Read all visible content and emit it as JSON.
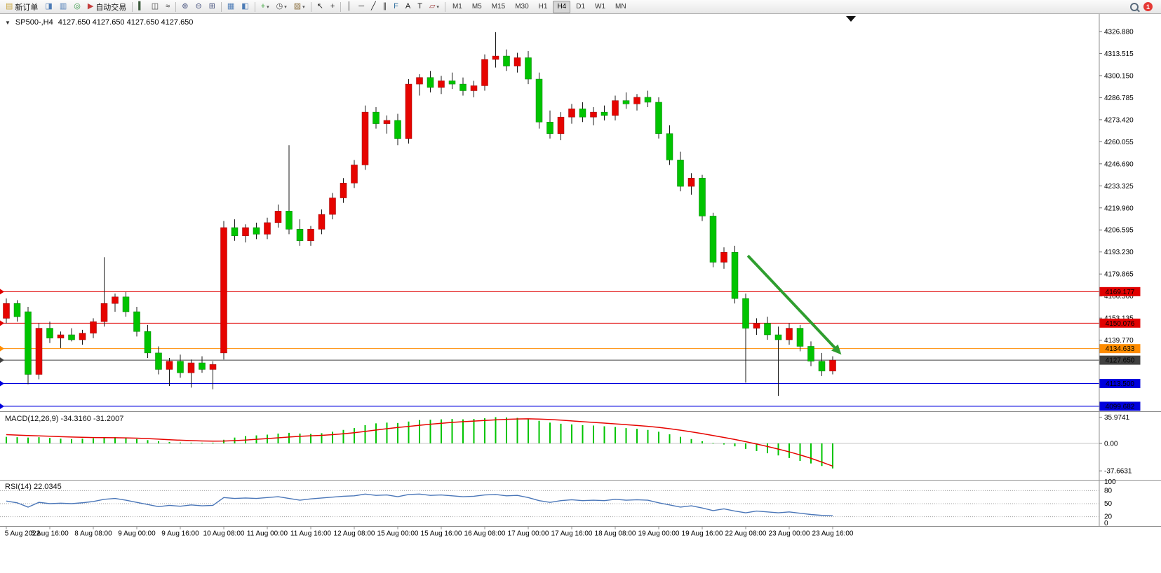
{
  "toolbar": {
    "items": [
      {
        "name": "new-order-button",
        "label": "新订单",
        "glyph": "▤",
        "color": "#c8a43c"
      },
      {
        "name": "chart-profiles-icon",
        "glyph": "◨",
        "color": "#4a7ab5"
      },
      {
        "name": "data-window-icon",
        "glyph": "▥",
        "color": "#4a7ab5"
      },
      {
        "name": "strategy-tester-icon",
        "glyph": "◎",
        "color": "#3f9d4e"
      },
      {
        "name": "autotrading-button",
        "label": "自动交易",
        "glyph": "▶",
        "color": "#c43c3c"
      },
      {
        "sep": true
      },
      {
        "name": "bar-chart-icon",
        "glyph": "▍",
        "color": "#3c5a3c"
      },
      {
        "name": "candlestick-chart-icon",
        "glyph": "◫",
        "color": "#444444"
      },
      {
        "name": "line-chart-icon",
        "glyph": "≈",
        "color": "#444444"
      },
      {
        "sep": true
      },
      {
        "name": "zoom-in-icon",
        "glyph": "⊕",
        "color": "#44507c"
      },
      {
        "name": "zoom-out-icon",
        "glyph": "⊖",
        "color": "#44507c"
      },
      {
        "name": "tile-windows-icon",
        "glyph": "⊞",
        "color": "#44507c"
      },
      {
        "sep": true
      },
      {
        "name": "auto-arrange-icon",
        "glyph": "▦",
        "color": "#4a7ab5"
      },
      {
        "name": "cascade-windows-icon",
        "glyph": "◧",
        "color": "#4a7ab5"
      },
      {
        "sep": true
      },
      {
        "name": "indicators-add-icon",
        "glyph": "+",
        "color": "#2e9e2e",
        "caret": true
      },
      {
        "name": "periods-icon",
        "glyph": "◷",
        "color": "#444444",
        "caret": true
      },
      {
        "name": "templates-icon",
        "glyph": "▨",
        "color": "#8a6d3b",
        "caret": true
      },
      {
        "sep": true
      },
      {
        "name": "cursor-icon",
        "glyph": "↖",
        "color": "#222222"
      },
      {
        "name": "crosshair-icon",
        "glyph": "+",
        "color": "#222222"
      },
      {
        "sep": true
      },
      {
        "name": "vertical-line-icon",
        "glyph": "│",
        "color": "#222222"
      },
      {
        "name": "horizontal-line-icon",
        "glyph": "─",
        "color": "#222222"
      },
      {
        "name": "trendline-icon",
        "glyph": "╱",
        "color": "#222222"
      },
      {
        "name": "equidistant-channel-icon",
        "glyph": "∥",
        "color": "#222222"
      },
      {
        "name": "fibonacci-icon",
        "glyph": "F",
        "color": "#2e6e9e"
      },
      {
        "name": "text-icon",
        "glyph": "A",
        "color": "#222222"
      },
      {
        "name": "text-label-icon",
        "glyph": "T",
        "color": "#222222"
      },
      {
        "name": "graphic-objects-icon",
        "glyph": "▱",
        "color": "#a04040",
        "caret": true
      },
      {
        "sep": true
      }
    ],
    "timeframes": [
      "M1",
      "M5",
      "M15",
      "M30",
      "H1",
      "H4",
      "D1",
      "W1",
      "MN"
    ],
    "active_timeframe": "H4",
    "notification_count": "1"
  },
  "chart": {
    "title_symbol": "SP500-,H4",
    "title_ohlc": "4127.650 4127.650 4127.650 4127.650"
  },
  "indicators": {
    "macd_label": "MACD(12,26,9) -34.3160 -31.2007",
    "rsi_label": "RSI(14) 22.0345"
  },
  "chart_data": {
    "type": "candlestick",
    "title": "SP500-,H4",
    "timeframe": "H4",
    "colors": {
      "bull": "#e60400",
      "bear": "#00c400",
      "wick": "#1a1a1a",
      "macd_hist": "#00c400",
      "macd_signal": "#e60400",
      "rsi_line": "#4a76b8",
      "arrow": "#2f9e2f"
    },
    "price_axis": {
      "min": 4099.675,
      "max": 4326.88,
      "ticks": [
        "4326.880",
        "4313.515",
        "4300.150",
        "4286.785",
        "4273.420",
        "4260.055",
        "4246.690",
        "4233.325",
        "4219.960",
        "4206.595",
        "4193.230",
        "4179.865",
        "4166.500",
        "4153.135",
        "4139.770",
        "4126.405",
        "4113.040",
        "4099.675"
      ]
    },
    "x_labels": [
      "5 Aug 2022",
      "5 Aug 16:00",
      "8 Aug 08:00",
      "9 Aug 00:00",
      "9 Aug 16:00",
      "10 Aug 08:00",
      "11 Aug 00:00",
      "11 Aug 16:00",
      "12 Aug 08:00",
      "15 Aug 00:00",
      "15 Aug 16:00",
      "16 Aug 08:00",
      "17 Aug 00:00",
      "17 Aug 16:00",
      "18 Aug 08:00",
      "19 Aug 00:00",
      "19 Aug 16:00",
      "22 Aug 08:00",
      "23 Aug 00:00",
      "23 Aug 16:00"
    ],
    "candles_ohlc": [
      [
        4153,
        4165,
        4150,
        4162
      ],
      [
        4162,
        4164,
        4151,
        4154
      ],
      [
        4157,
        4160,
        4113,
        4119
      ],
      [
        4119,
        4150,
        4116,
        4147
      ],
      [
        4147,
        4151,
        4138,
        4141
      ],
      [
        4141,
        4145,
        4135,
        4143
      ],
      [
        4143,
        4147,
        4139,
        4140
      ],
      [
        4140,
        4146,
        4137,
        4144
      ],
      [
        4144,
        4153,
        4141,
        4151
      ],
      [
        4151,
        4190,
        4148,
        4162
      ],
      [
        4162,
        4168,
        4157,
        4166
      ],
      [
        4166,
        4169,
        4154,
        4157
      ],
      [
        4157,
        4160,
        4142,
        4145
      ],
      [
        4145,
        4149,
        4129,
        4132
      ],
      [
        4132,
        4136,
        4119,
        4122
      ],
      [
        4122,
        4129,
        4112,
        4127
      ],
      [
        4127,
        4131,
        4117,
        4120
      ],
      [
        4120,
        4128,
        4111,
        4126
      ],
      [
        4126,
        4130,
        4120,
        4122
      ],
      [
        4122,
        4127,
        4110,
        4125
      ],
      [
        4132,
        4212,
        4128,
        4208
      ],
      [
        4208,
        4213,
        4200,
        4203
      ],
      [
        4203,
        4210,
        4199,
        4208
      ],
      [
        4208,
        4211,
        4201,
        4204
      ],
      [
        4204,
        4214,
        4201,
        4211
      ],
      [
        4211,
        4222,
        4208,
        4218
      ],
      [
        4218,
        4258,
        4204,
        4207
      ],
      [
        4207,
        4213,
        4197,
        4200
      ],
      [
        4200,
        4209,
        4197,
        4207
      ],
      [
        4207,
        4219,
        4204,
        4216
      ],
      [
        4216,
        4229,
        4213,
        4226
      ],
      [
        4226,
        4238,
        4223,
        4235
      ],
      [
        4235,
        4249,
        4232,
        4246
      ],
      [
        4246,
        4282,
        4243,
        4278
      ],
      [
        4278,
        4281,
        4268,
        4271
      ],
      [
        4271,
        4276,
        4265,
        4273
      ],
      [
        4273,
        4277,
        4258,
        4262
      ],
      [
        4262,
        4298,
        4259,
        4295
      ],
      [
        4295,
        4301,
        4288,
        4299
      ],
      [
        4299,
        4303,
        4290,
        4293
      ],
      [
        4293,
        4300,
        4289,
        4297
      ],
      [
        4297,
        4302,
        4292,
        4295
      ],
      [
        4295,
        4299,
        4288,
        4291
      ],
      [
        4291,
        4297,
        4287,
        4294
      ],
      [
        4294,
        4313,
        4291,
        4310
      ],
      [
        4310,
        4326.5,
        4305,
        4312
      ],
      [
        4312,
        4316,
        4303,
        4306
      ],
      [
        4306,
        4314,
        4302,
        4311
      ],
      [
        4311,
        4315,
        4295,
        4298
      ],
      [
        4298,
        4302,
        4268,
        4272
      ],
      [
        4272,
        4279,
        4262,
        4265
      ],
      [
        4265,
        4278,
        4261,
        4275
      ],
      [
        4275,
        4283,
        4271,
        4280
      ],
      [
        4280,
        4284,
        4272,
        4275
      ],
      [
        4275,
        4281,
        4270,
        4278
      ],
      [
        4278,
        4282,
        4273,
        4276
      ],
      [
        4276,
        4288,
        4273,
        4285
      ],
      [
        4285,
        4290,
        4280,
        4283
      ],
      [
        4283,
        4289,
        4279,
        4287
      ],
      [
        4287,
        4291,
        4281,
        4284
      ],
      [
        4284,
        4287,
        4262,
        4265
      ],
      [
        4265,
        4270,
        4246,
        4249
      ],
      [
        4249,
        4254,
        4230,
        4233
      ],
      [
        4233,
        4241,
        4228,
        4238
      ],
      [
        4238,
        4240,
        4212,
        4215
      ],
      [
        4215,
        4217,
        4184,
        4187
      ],
      [
        4187,
        4196,
        4183,
        4193
      ],
      [
        4193,
        4197,
        4162,
        4165
      ],
      [
        4165,
        4168,
        4114,
        4147
      ],
      [
        4147,
        4153,
        4143,
        4150
      ],
      [
        4150,
        4154,
        4140,
        4143
      ],
      [
        4143,
        4148,
        4106,
        4140
      ],
      [
        4140,
        4150,
        4137,
        4147
      ],
      [
        4147,
        4149,
        4133,
        4136
      ],
      [
        4136,
        4139,
        4124,
        4127
      ],
      [
        4127,
        4132,
        4118,
        4121
      ],
      [
        4121,
        4130,
        4119,
        4127.65
      ]
    ],
    "hlines": [
      {
        "price": 4169.177,
        "label": "4169.177",
        "color": "#e00000"
      },
      {
        "price": 4150.076,
        "label": "4150.076",
        "color": "#e00000"
      },
      {
        "price": 4134.633,
        "label": "4134.633",
        "color": "#ff8c00"
      },
      {
        "price": 4127.65,
        "label": "4127.650",
        "color": "#404040",
        "current": true
      },
      {
        "price": 4113.5,
        "label": "4113.500",
        "color": "#0000dd"
      },
      {
        "price": 4099.682,
        "label": "4099.682",
        "color": "#0000dd"
      }
    ],
    "trend_arrow": {
      "from_index": 68.2,
      "from_price": 4191,
      "to_index": 76.8,
      "to_price": 4131,
      "width": 4
    },
    "macd": {
      "label": "MACD(12,26,9) -34.3160 -31.2007",
      "params": [
        12,
        26,
        9
      ],
      "last_values": [
        -34.316,
        -31.2007
      ],
      "axis_ticks": [
        "35.9741",
        "0.00",
        "-37.6631"
      ],
      "histogram": [
        9,
        8.5,
        8,
        8.5,
        7.5,
        6.5,
        6,
        6.5,
        7,
        8,
        8.5,
        7.5,
        6,
        4.5,
        3,
        2,
        1.2,
        1,
        0.8,
        1,
        5,
        8,
        10,
        11,
        12,
        13.5,
        14.5,
        13.5,
        13,
        14,
        16,
        18.5,
        21,
        25,
        27.5,
        28.5,
        28,
        30,
        32,
        32.5,
        33,
        33.5,
        33,
        33.5,
        34.5,
        36,
        35.5,
        35,
        33.5,
        31,
        28.5,
        27,
        26,
        25,
        24.5,
        23.5,
        22.5,
        21,
        20,
        18.5,
        16,
        12.5,
        9,
        6,
        3,
        0.5,
        -1.5,
        -4,
        -7.5,
        -10.5,
        -13.5,
        -16.5,
        -20,
        -24,
        -27.5,
        -31,
        -34.3
      ],
      "signal": [
        12,
        11.4,
        10.8,
        10.3,
        9.8,
        9.3,
        8.8,
        8.4,
        8.1,
        7.9,
        7.8,
        7.6,
        7.2,
        6.6,
        5.9,
        5.1,
        4.4,
        3.8,
        3.4,
        3.1,
        3.2,
        3.8,
        4.6,
        5.6,
        6.6,
        7.7,
        8.8,
        9.7,
        10.4,
        11.1,
        12,
        13.2,
        14.7,
        16.5,
        18.4,
        20.2,
        21.8,
        23.3,
        24.9,
        26.3,
        27.6,
        28.8,
        29.8,
        30.6,
        31.4,
        32.3,
        33,
        33.5,
        33.7,
        33.4,
        32.8,
        31.9,
        30.9,
        29.8,
        28.8,
        27.8,
        26.8,
        25.7,
        24.6,
        23.4,
        22,
        20.2,
        18.1,
        15.8,
        13.4,
        10.8,
        8.2,
        5.4,
        2.4,
        -0.8,
        -4.2,
        -7.8,
        -11.6,
        -15.8,
        -20.4,
        -25.6,
        -31.2
      ]
    },
    "rsi": {
      "label": "RSI(14) 22.0345",
      "period": 14,
      "last_value": 22.0345,
      "levels": [
        80,
        50,
        20
      ],
      "axis_ticks": [
        "100",
        "80",
        "50",
        "20",
        "0"
      ],
      "values": [
        56,
        52,
        42,
        53,
        50,
        51,
        50,
        52,
        55,
        60,
        62,
        58,
        53,
        48,
        43,
        46,
        44,
        47,
        45,
        46,
        64,
        62,
        63,
        62,
        64,
        66,
        62,
        58,
        61,
        63,
        65,
        67,
        68,
        72,
        69,
        70,
        66,
        71,
        72,
        69,
        70,
        68,
        66,
        67,
        70,
        71,
        68,
        69,
        64,
        57,
        53,
        57,
        59,
        57,
        58,
        57,
        60,
        58,
        59,
        58,
        52,
        47,
        42,
        45,
        40,
        34,
        38,
        33,
        29,
        33,
        31,
        29,
        31,
        28,
        25,
        23,
        22
      ]
    }
  }
}
